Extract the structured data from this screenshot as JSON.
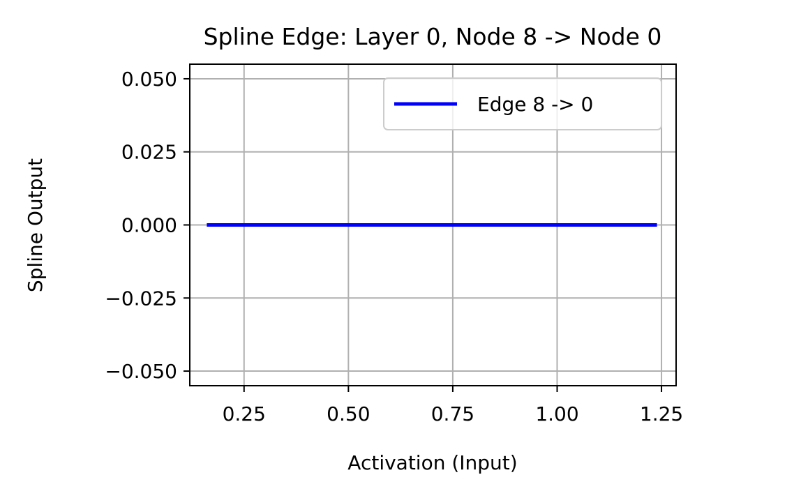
{
  "chart_data": {
    "type": "line",
    "title": "Spline Edge: Layer 0, Node 8 -> Node 0",
    "xlabel": "Activation (Input)",
    "ylabel": "Spline Output",
    "xlim": [
      0.12,
      1.285
    ],
    "ylim": [
      -0.055,
      0.055
    ],
    "xticks": [
      0.25,
      0.5,
      0.75,
      1.0,
      1.25
    ],
    "xtick_labels": [
      "0.25",
      "0.50",
      "0.75",
      "1.00",
      "1.25"
    ],
    "yticks": [
      0.05,
      0.025,
      0.0,
      -0.025,
      -0.05
    ],
    "ytick_labels": [
      "0.050",
      "0.025",
      "0.000",
      "−0.025",
      "−0.050"
    ],
    "grid": true,
    "legend_position": "top-right",
    "series": [
      {
        "name": "Edge 8 -> 0",
        "color": "#0000ff",
        "x": [
          0.165,
          1.235
        ],
        "y": [
          0.0,
          0.0
        ]
      }
    ]
  }
}
